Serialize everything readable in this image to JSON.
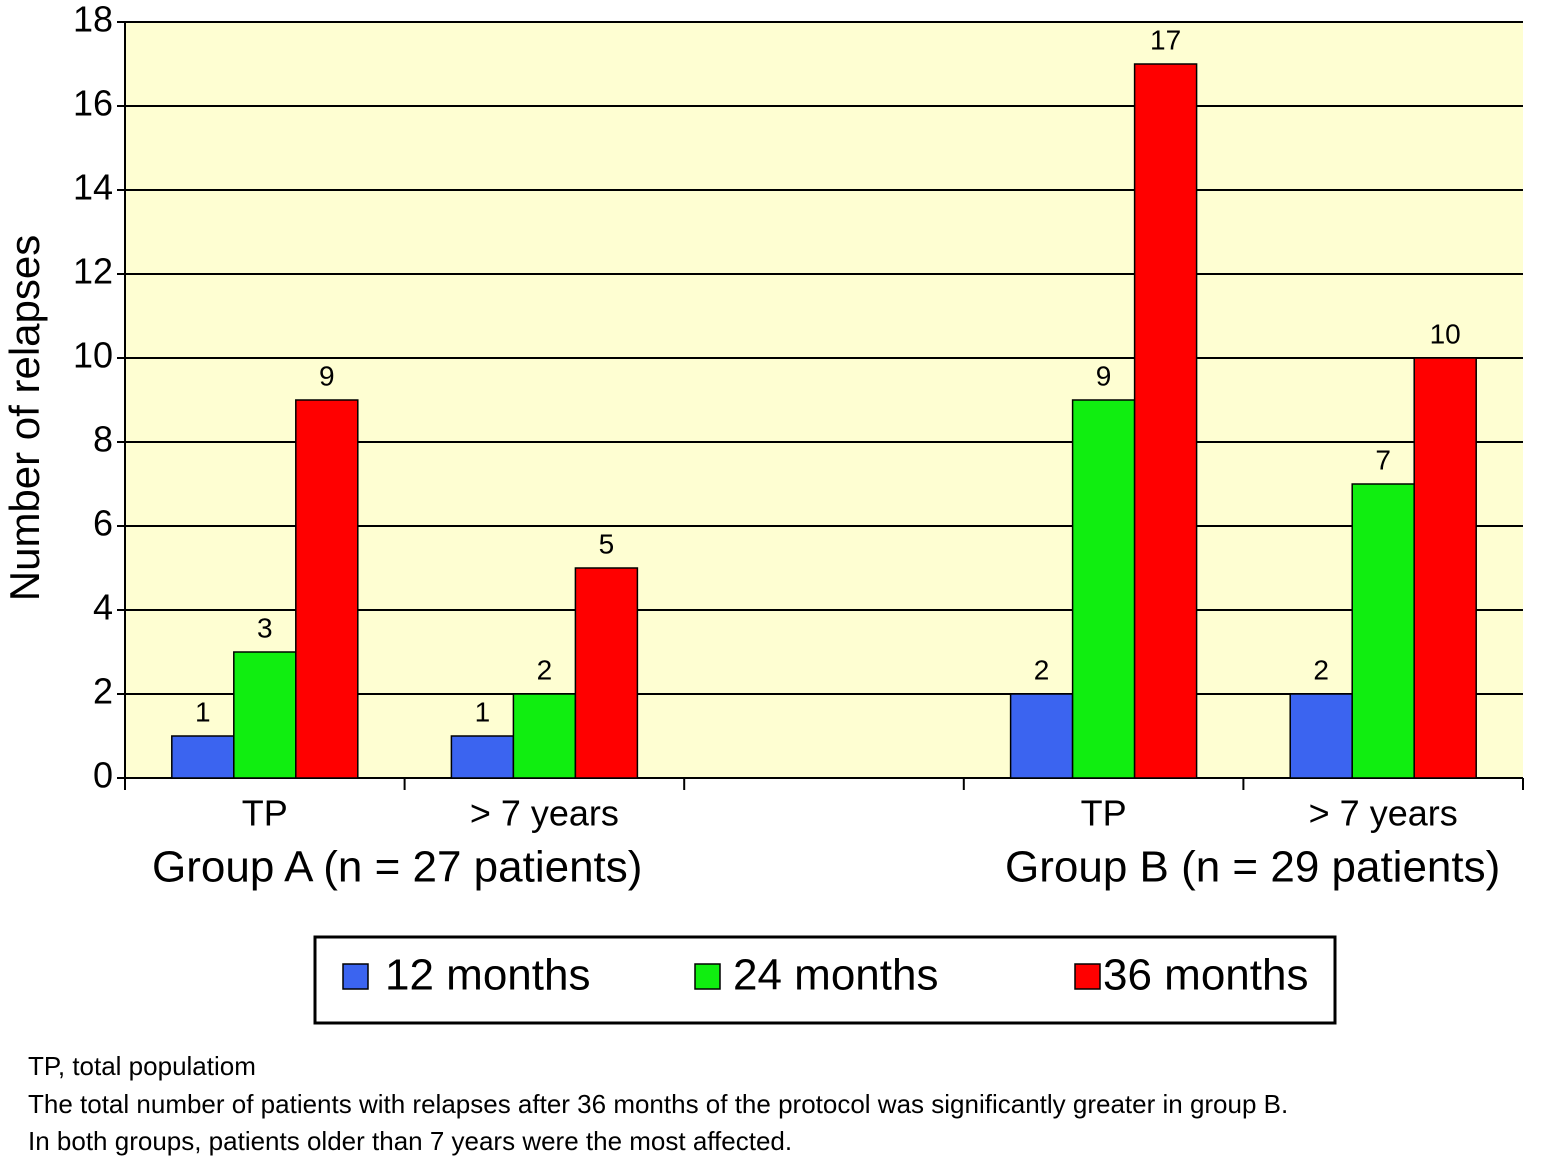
{
  "chart_data": {
    "type": "bar",
    "y_label": "Number of relapses",
    "categories": [
      "TP",
      "> 7 years",
      null,
      "TP",
      "> 7 years"
    ],
    "group_labels": [
      "Group A (n = 27 patients)",
      "Group B (n = 29 patients)"
    ],
    "series": [
      {
        "name": "12 months",
        "color": "#3b64f0",
        "values": [
          1,
          1,
          null,
          2,
          2
        ]
      },
      {
        "name": "24 months",
        "color": "#10ee10",
        "values": [
          3,
          2,
          null,
          9,
          7
        ]
      },
      {
        "name": "36 months",
        "color": "#ff0000",
        "values": [
          9,
          5,
          null,
          17,
          10
        ]
      }
    ],
    "ylim": [
      0,
      18
    ],
    "yticks": [
      0,
      2,
      4,
      6,
      8,
      10,
      12,
      14,
      16,
      18
    ],
    "grid": true,
    "background": "#fefed2"
  },
  "notes": [
    "TP, total populatiom",
    "The total number of patients with relapses after 36 months of the protocol was significantly greater in group B.",
    "In both groups, patients older than 7 years were the most affected."
  ]
}
